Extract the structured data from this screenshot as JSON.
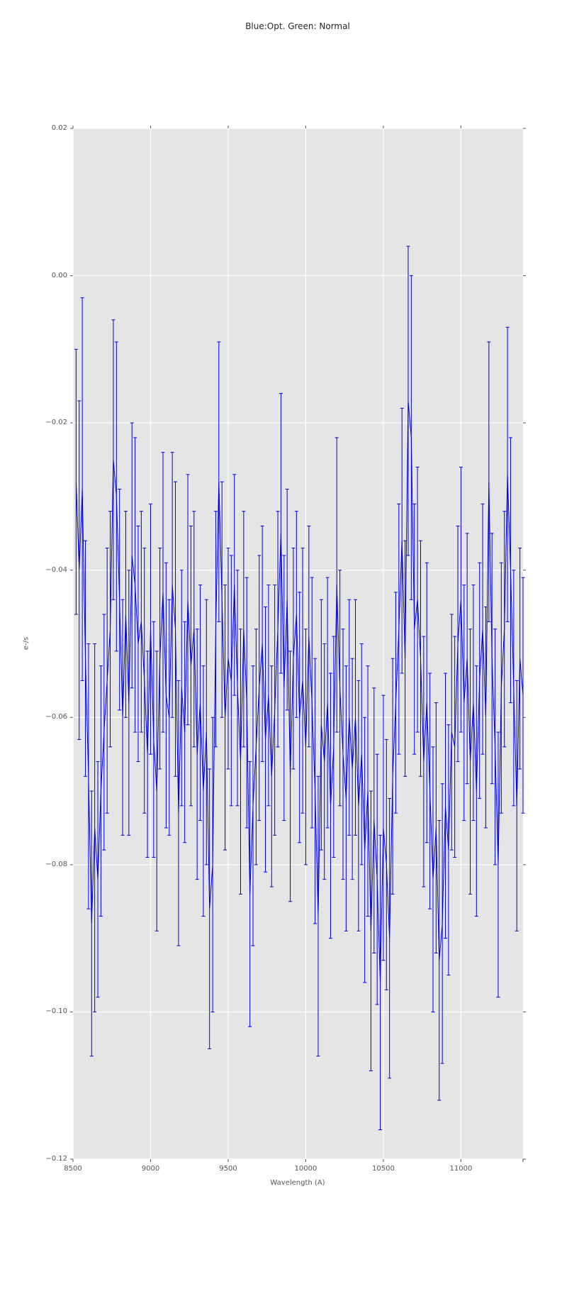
{
  "title": "Blue:Opt. Green: Normal",
  "colors": {
    "line": "#0000dd",
    "plot_background": "#e5e5e5",
    "gridline": "#ffffff",
    "tick": "#555555",
    "title_text": "#262626"
  },
  "chart_data": {
    "type": "line",
    "title": "Blue:Opt. Green: Normal",
    "xlabel": "Wavelength (A)",
    "ylabel": "e-/s",
    "xlim": [
      8500,
      11400
    ],
    "ylim": [
      -0.12,
      0.02
    ],
    "x_ticks": [
      8500,
      9000,
      9500,
      10000,
      10500,
      11000
    ],
    "x_tick_labels": [
      "8500",
      "9000",
      "9500",
      "10000",
      "10500",
      "11000"
    ],
    "y_ticks": [
      0.02,
      0.0,
      -0.02,
      -0.04,
      -0.06,
      -0.08,
      -0.1,
      -0.12
    ],
    "y_tick_labels": [
      "0.02",
      "0.00",
      "−0.02",
      "−0.04",
      "−0.06",
      "−0.08",
      "−0.10",
      "−0.12"
    ],
    "grid": true,
    "legend": "none",
    "series": [
      {
        "name": "spectrum-errorbar",
        "color": "#0000dd",
        "x_start": 8520,
        "x_step": 20,
        "y": [
          -0.028,
          -0.04,
          -0.029,
          -0.052,
          -0.068,
          -0.088,
          -0.075,
          -0.082,
          -0.07,
          -0.062,
          -0.055,
          -0.048,
          -0.025,
          -0.03,
          -0.044,
          -0.06,
          -0.046,
          -0.058,
          -0.038,
          -0.042,
          -0.05,
          -0.047,
          -0.055,
          -0.065,
          -0.048,
          -0.063,
          -0.07,
          -0.052,
          -0.043,
          -0.057,
          -0.06,
          -0.042,
          -0.048,
          -0.073,
          -0.056,
          -0.062,
          -0.044,
          -0.053,
          -0.048,
          -0.065,
          -0.058,
          -0.07,
          -0.062,
          -0.086,
          -0.08,
          -0.048,
          -0.028,
          -0.044,
          -0.06,
          -0.052,
          -0.055,
          -0.042,
          -0.056,
          -0.066,
          -0.048,
          -0.058,
          -0.084,
          -0.072,
          -0.064,
          -0.056,
          -0.05,
          -0.063,
          -0.057,
          -0.068,
          -0.059,
          -0.048,
          -0.035,
          -0.056,
          -0.044,
          -0.068,
          -0.052,
          -0.046,
          -0.06,
          -0.055,
          -0.064,
          -0.049,
          -0.058,
          -0.07,
          -0.087,
          -0.061,
          -0.066,
          -0.058,
          -0.072,
          -0.064,
          -0.042,
          -0.056,
          -0.065,
          -0.071,
          -0.06,
          -0.067,
          -0.06,
          -0.072,
          -0.065,
          -0.078,
          -0.07,
          -0.089,
          -0.074,
          -0.082,
          -0.096,
          -0.075,
          -0.08,
          -0.09,
          -0.068,
          -0.058,
          -0.048,
          -0.036,
          -0.052,
          -0.017,
          -0.022,
          -0.048,
          -0.044,
          -0.052,
          -0.066,
          -0.058,
          -0.07,
          -0.082,
          -0.075,
          -0.093,
          -0.088,
          -0.072,
          -0.078,
          -0.062,
          -0.064,
          -0.05,
          -0.044,
          -0.058,
          -0.052,
          -0.066,
          -0.058,
          -0.07,
          -0.055,
          -0.048,
          -0.06,
          -0.028,
          -0.052,
          -0.064,
          -0.08,
          -0.056,
          -0.048,
          -0.027,
          -0.04,
          -0.056,
          -0.072,
          -0.052,
          -0.057
        ],
        "yerr": [
          0.018,
          0.023,
          0.026,
          0.016,
          0.018,
          0.018,
          0.025,
          0.016,
          0.017,
          0.016,
          0.018,
          0.016,
          0.019,
          0.021,
          0.015,
          0.016,
          0.014,
          0.018,
          0.018,
          0.02,
          0.016,
          0.015,
          0.018,
          0.014,
          0.017,
          0.016,
          0.019,
          0.015,
          0.019,
          0.018,
          0.016,
          0.018,
          0.02,
          0.018,
          0.016,
          0.015,
          0.017,
          0.019,
          0.016,
          0.017,
          0.016,
          0.017,
          0.018,
          0.019,
          0.02,
          0.016,
          0.019,
          0.016,
          0.018,
          0.015,
          0.017,
          0.015,
          0.016,
          0.018,
          0.016,
          0.017,
          0.018,
          0.019,
          0.016,
          0.018,
          0.016,
          0.018,
          0.015,
          0.015,
          0.017,
          0.016,
          0.019,
          0.018,
          0.015,
          0.017,
          0.015,
          0.014,
          0.017,
          0.018,
          0.016,
          0.015,
          0.017,
          0.018,
          0.019,
          0.017,
          0.016,
          0.017,
          0.018,
          0.015,
          0.02,
          0.016,
          0.017,
          0.018,
          0.016,
          0.015,
          0.016,
          0.017,
          0.015,
          0.018,
          0.017,
          0.019,
          0.018,
          0.017,
          0.02,
          0.018,
          0.017,
          0.019,
          0.016,
          0.015,
          0.017,
          0.018,
          0.016,
          0.021,
          0.022,
          0.017,
          0.018,
          0.016,
          0.017,
          0.019,
          0.016,
          0.018,
          0.017,
          0.019,
          0.019,
          0.018,
          0.017,
          0.016,
          0.015,
          0.016,
          0.018,
          0.016,
          0.017,
          0.018,
          0.016,
          0.017,
          0.016,
          0.017,
          0.015,
          0.019,
          0.017,
          0.016,
          0.018,
          0.017,
          0.016,
          0.02,
          0.018,
          0.016,
          0.017,
          0.015,
          0.016
        ]
      }
    ]
  }
}
